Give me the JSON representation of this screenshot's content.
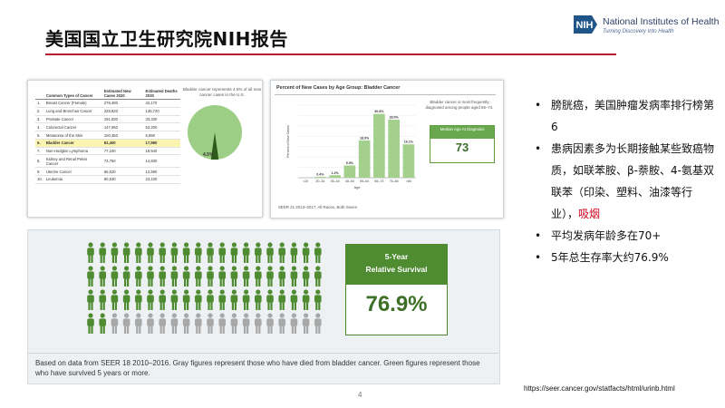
{
  "header": {
    "title": "美国国立卫生研究院NIH报告",
    "logo_text": "National Institutes of Health",
    "logo_tagline": "Turning Discovery Into Health",
    "logo_mark": "NIH"
  },
  "table_panel": {
    "columns": [
      "Common Types of Cancer",
      "Estimated New Cases 2020",
      "Estimated Deaths 2020"
    ],
    "rows": [
      {
        "n": "1.",
        "name": "Breast Cancer (Female)",
        "cases": "276,480",
        "deaths": "42,170"
      },
      {
        "n": "2.",
        "name": "Lung and Bronchus Cancer",
        "cases": "228,820",
        "deaths": "135,720"
      },
      {
        "n": "3.",
        "name": "Prostate Cancer",
        "cases": "191,930",
        "deaths": "33,330"
      },
      {
        "n": "4.",
        "name": "Colorectal Cancer",
        "cases": "147,950",
        "deaths": "53,200"
      },
      {
        "n": "5.",
        "name": "Melanoma of the Skin",
        "cases": "100,350",
        "deaths": "6,850"
      },
      {
        "n": "6.",
        "name": "Bladder Cancer",
        "cases": "81,400",
        "deaths": "17,980"
      },
      {
        "n": "7.",
        "name": "Non-Hodgkin Lymphoma",
        "cases": "77,240",
        "deaths": "19,940"
      },
      {
        "n": "8.",
        "name": "Kidney and Renal Pelvis Cancer",
        "cases": "73,750",
        "deaths": "14,830"
      },
      {
        "n": "9.",
        "name": "Uterine Cancer",
        "cases": "65,620",
        "deaths": "12,590"
      },
      {
        "n": "10.",
        "name": "Leukemia",
        "cases": "60,530",
        "deaths": "23,100"
      }
    ],
    "highlight_row": 5,
    "pie_note": "Bladder cancer represents 4.5% of all new cancer cases in the U.S.",
    "pie_label": "4.5%",
    "pie_fraction": 0.045,
    "colors": {
      "pie": "#9ccf85",
      "slice": "#2e5a1c"
    }
  },
  "chart_data": {
    "type": "bar",
    "title": "Percent of New Cases by Age Group: Bladder Cancer",
    "xlabel": "Age",
    "ylabel": "Percent of New Cases",
    "categories": [
      "<20",
      "20–34",
      "35–44",
      "45–54",
      "55–64",
      "65–74",
      "75–84",
      ">84"
    ],
    "values": [
      0.0,
      0.4,
      1.2,
      5.9,
      18.0,
      30.8,
      28.0,
      16.1
    ],
    "value_labels": [
      "",
      "0.4%",
      "1.2%",
      "5.9%",
      "18.0%",
      "30.8%",
      "28.0%",
      "16.1%"
    ],
    "ylim": [
      0,
      35
    ],
    "grid": true,
    "bar_color": "#a3d18d",
    "side_note": "Bladder cancer is most frequently diagnosed among people aged 65–74.",
    "median_label": "Median Age At Diagnosis",
    "median_value": "73",
    "source": "SEER 21 2013–2017, All Races, Both Sexes"
  },
  "survival_panel": {
    "label_line1": "5-Year",
    "label_line2": "Relative Survival",
    "value": "76.9%",
    "survived_fraction": 0.769,
    "caption": "Based on data from SEER 18 2010–2016. Gray figures represent those who have died from bladder cancer. Green figures represent those who have survived 5 years or more.",
    "colors": {
      "survived": "#4e8b31",
      "died": "#a8a8a8"
    }
  },
  "bullets": [
    {
      "parts": [
        {
          "text": "膀胱癌，美国肿瘤发病率排行榜第6"
        }
      ]
    },
    {
      "parts": [
        {
          "text": "患病因素多为长期接触某些致癌物质，如联苯胺、β-萘胺、4-氨基双联苯（印染、塑料、油漆等行业），"
        },
        {
          "text": "吸烟",
          "red": true
        }
      ]
    },
    {
      "parts": [
        {
          "text": "平均发病年龄多在70+"
        }
      ]
    },
    {
      "parts": [
        {
          "text": "5年总生存率大约76.9%"
        }
      ]
    }
  ],
  "footer": {
    "url": "https://seer.cancer.gov/statfacts/html/urinb.html",
    "page_number": "4"
  }
}
